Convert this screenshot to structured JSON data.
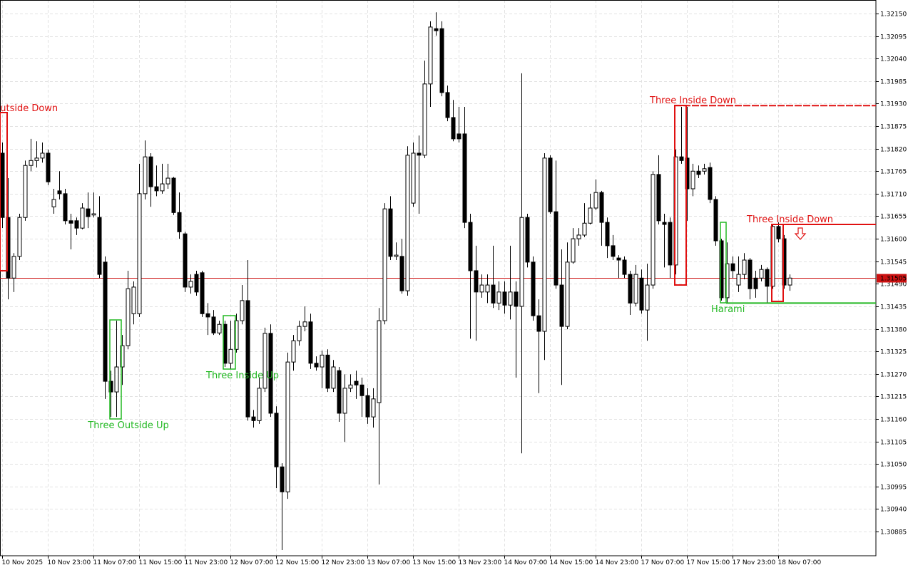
{
  "chart_data": {
    "type": "candlestick",
    "grid": true,
    "bull_color": "#ffffff",
    "bear_color": "#000000",
    "outline_color": "#000000",
    "xlim": [
      -0.375,
      153.125
    ],
    "ylim": [
      1.30826,
      1.32183
    ],
    "xticks": [
      {
        "value": 0,
        "label": "10 Nov 2025"
      },
      {
        "value": 8,
        "label": "10 Nov 23:00"
      },
      {
        "value": 16,
        "label": "11 Nov 07:00"
      },
      {
        "value": 24,
        "label": "11 Nov 15:00"
      },
      {
        "value": 32,
        "label": "11 Nov 23:00"
      },
      {
        "value": 40,
        "label": "12 Nov 07:00"
      },
      {
        "value": 48,
        "label": "12 Nov 15:00"
      },
      {
        "value": 56,
        "label": "12 Nov 23:00"
      },
      {
        "value": 64,
        "label": "13 Nov 07:00"
      },
      {
        "value": 72,
        "label": "13 Nov 15:00"
      },
      {
        "value": 80,
        "label": "13 Nov 23:00"
      },
      {
        "value": 88,
        "label": "14 Nov 07:00"
      },
      {
        "value": 96,
        "label": "14 Nov 15:00"
      },
      {
        "value": 104,
        "label": "14 Nov 23:00"
      },
      {
        "value": 112,
        "label": "17 Nov 07:00"
      },
      {
        "value": 120,
        "label": "17 Nov 15:00"
      },
      {
        "value": 128,
        "label": "17 Nov 23:00"
      },
      {
        "value": 136,
        "label": "18 Nov 07:00"
      }
    ],
    "yticks": [
      {
        "value": 1.3215,
        "label": "1.32150"
      },
      1.32095,
      {
        "value": 1.3204,
        "label": "1.32040"
      },
      1.31985,
      {
        "value": 1.3193,
        "label": "1.31930"
      },
      1.31875,
      {
        "value": 1.3182,
        "label": "1.31820"
      },
      1.31765,
      {
        "value": 1.3171,
        "label": "1.31710"
      },
      1.31655,
      {
        "value": 1.316,
        "label": "1.31600"
      },
      1.31545,
      {
        "value": 1.3149,
        "label": "1.31490"
      },
      1.31435,
      {
        "value": 1.3138,
        "label": "1.31380"
      },
      1.31325,
      {
        "value": 1.3127,
        "label": "1.31270"
      },
      1.31215,
      {
        "value": 1.3116,
        "label": "1.31160"
      },
      1.31105,
      {
        "value": 1.3105,
        "label": "1.31050"
      },
      1.30995,
      {
        "value": 1.3094,
        "label": "1.30940"
      },
      1.30885
    ],
    "current_price": {
      "value": 1.31505,
      "color": "#cc1111"
    },
    "annotations": [
      {
        "text": "Outside Down",
        "color": "#e01010"
      },
      {
        "text": "Three Outside Up",
        "color": "#22b822"
      },
      {
        "text": "Three Inside Up",
        "color": "#22b822"
      },
      {
        "text": "Three Inside Down",
        "color": "#e01010",
        "level": 1.31925
      },
      {
        "text": "Harami",
        "color": "#22b822",
        "level": 1.31443
      },
      {
        "text": "Three Inside Down",
        "color": "#e01010",
        "level": 1.31635
      }
    ],
    "open": [
      1.31809,
      1.31652,
      1.31504,
      1.31557,
      1.31652,
      1.31779,
      1.31791,
      1.31797,
      1.31809,
      1.31678,
      1.31717,
      1.3171,
      1.31644,
      1.31644,
      1.31626,
      1.31673,
      1.31658,
      1.31652,
      1.31543,
      1.31252,
      1.31226,
      1.31287,
      1.31339,
      1.31417,
      1.31417,
      1.3171,
      1.318,
      1.31727,
      1.31717,
      1.31734,
      1.31748,
      1.31664,
      1.31612,
      1.31482,
      1.31513,
      1.31517,
      1.31417,
      1.31409,
      1.3137,
      1.31391,
      1.31296,
      1.3133,
      1.314,
      1.31449,
      1.31165,
      1.31156,
      1.31235,
      1.31369,
      1.31174,
      1.31043,
      1.30982,
      1.31299,
      1.31351,
      1.31386,
      1.31397,
      1.31296,
      1.31287,
      1.31316,
      1.31235,
      1.31278,
      1.31174,
      1.31235,
      1.31252,
      1.31243,
      1.31217,
      1.31165,
      1.312,
      1.314,
      1.31673,
      1.31557,
      1.31557,
      1.31473,
      1.31687,
      1.31809,
      1.31804,
      1.31978,
      1.32113,
      1.32113,
      1.31957,
      1.31896,
      1.31856,
      1.31856,
      1.3164,
      1.31522,
      1.3147,
      1.3147,
      1.31487,
      1.31443,
      1.3147,
      1.31438,
      1.3147,
      1.31435,
      1.31652,
      1.31543,
      1.31412,
      1.31374,
      1.31797,
      1.31666,
      1.31487,
      1.31386,
      1.31543,
      1.316,
      1.31609,
      1.31638,
      1.31675,
      1.31713,
      1.3164,
      1.31583,
      1.31553,
      1.31548,
      1.31513,
      1.31443,
      1.31504,
      1.31426,
      1.31487,
      1.31757,
      1.3164,
      1.3164,
      1.31536,
      1.318,
      1.31797,
      1.31722,
      1.31765,
      1.31765,
      1.31774,
      1.31696,
      1.31595,
      1.31456,
      1.31539,
      1.31487,
      1.31513,
      1.31548,
      1.31504,
      1.31504,
      1.31525,
      1.31484,
      1.3163,
      1.316,
      1.31487
    ],
    "high": [
      1.31835,
      1.31748,
      1.31565,
      1.31661,
      1.31791,
      1.31844,
      1.31838,
      1.31835,
      1.31818,
      1.31722,
      1.31765,
      1.31722,
      1.31661,
      1.31652,
      1.31687,
      1.31713,
      1.31713,
      1.31704,
      1.31557,
      1.31278,
      1.314,
      1.31365,
      1.31522,
      1.31496,
      1.31783,
      1.3184,
      1.31809,
      1.31779,
      1.31783,
      1.31783,
      1.31751,
      1.31713,
      1.31617,
      1.31513,
      1.31522,
      1.31522,
      1.31443,
      1.31426,
      1.314,
      1.314,
      1.314,
      1.31417,
      1.31487,
      1.31548,
      1.31182,
      1.31261,
      1.31383,
      1.31391,
      1.31191,
      1.31052,
      1.31322,
      1.31365,
      1.314,
      1.31435,
      1.31417,
      1.31313,
      1.31327,
      1.3133,
      1.31304,
      1.31287,
      1.31269,
      1.31269,
      1.31278,
      1.31261,
      1.31235,
      1.31235,
      1.31431,
      1.31687,
      1.31704,
      1.31591,
      1.316,
      1.31826,
      1.31835,
      1.31852,
      1.32035,
      1.32131,
      1.32153,
      1.32131,
      1.31974,
      1.31939,
      1.31922,
      1.31922,
      1.31661,
      1.31583,
      1.31513,
      1.31513,
      1.31583,
      1.31496,
      1.31496,
      1.31583,
      1.31496,
      1.32004,
      1.31661,
      1.31557,
      1.31452,
      1.31809,
      1.31804,
      1.31791,
      1.31574,
      1.31591,
      1.31626,
      1.31626,
      1.31687,
      1.3171,
      1.31745,
      1.31717,
      1.31652,
      1.31609,
      1.3156,
      1.31557,
      1.31522,
      1.31536,
      1.31525,
      1.31539,
      1.31765,
      1.31804,
      1.31661,
      1.31652,
      1.31818,
      1.31922,
      1.31922,
      1.31783,
      1.31779,
      1.31783,
      1.31786,
      1.31704,
      1.316,
      1.31591,
      1.31557,
      1.31557,
      1.31565,
      1.31553,
      1.31522,
      1.31536,
      1.3153,
      1.31635,
      1.3164,
      1.31609,
      1.31513
    ],
    "low": [
      1.31626,
      1.31452,
      1.3147,
      1.31548,
      1.31644,
      1.31765,
      1.31774,
      1.31786,
      1.31731,
      1.31661,
      1.31696,
      1.31635,
      1.31574,
      1.31609,
      1.31623,
      1.31626,
      1.31652,
      1.31504,
      1.31209,
      1.31165,
      1.31165,
      1.31243,
      1.3133,
      1.31391,
      1.31409,
      1.31696,
      1.31678,
      1.31704,
      1.3171,
      1.31722,
      1.31658,
      1.316,
      1.3147,
      1.31466,
      1.31461,
      1.31409,
      1.31365,
      1.31365,
      1.31365,
      1.31287,
      1.31282,
      1.31322,
      1.31391,
      1.31156,
      1.31139,
      1.31148,
      1.31226,
      1.31165,
      1.30991,
      1.3084,
      1.30965,
      1.31278,
      1.31339,
      1.31374,
      1.31282,
      1.31278,
      1.31235,
      1.31226,
      1.31226,
      1.31153,
      1.31104,
      1.31226,
      1.31209,
      1.31165,
      1.31148,
      1.31139,
      1.31,
      1.31391,
      1.31548,
      1.31548,
      1.31466,
      1.31461,
      1.31678,
      1.31661,
      1.31797,
      1.31922,
      1.32096,
      1.31948,
      1.31887,
      1.31838,
      1.31835,
      1.31626,
      1.31356,
      1.31351,
      1.31456,
      1.31443,
      1.31431,
      1.31426,
      1.31417,
      1.31403,
      1.31261,
      1.31076,
      1.3153,
      1.314,
      1.31223,
      1.31304,
      1.31661,
      1.31478,
      1.31243,
      1.31379,
      1.31539,
      1.31583,
      1.31604,
      1.31635,
      1.3167,
      1.31583,
      1.31553,
      1.31548,
      1.31504,
      1.31504,
      1.31414,
      1.31435,
      1.31417,
      1.31351,
      1.31478,
      1.31635,
      1.3153,
      1.31504,
      1.31513,
      1.31783,
      1.31644,
      1.31704,
      1.31748,
      1.31757,
      1.31687,
      1.31583,
      1.31449,
      1.31443,
      1.31504,
      1.3147,
      1.31501,
      1.31452,
      1.31456,
      1.31496,
      1.31443,
      1.31478,
      1.31591,
      1.31478,
      1.31473
    ],
    "close": [
      1.31652,
      1.31504,
      1.31557,
      1.31652,
      1.31779,
      1.31791,
      1.31797,
      1.31809,
      1.31739,
      1.31696,
      1.3171,
      1.31644,
      1.31638,
      1.31626,
      1.31675,
      1.31654,
      1.31661,
      1.31513,
      1.31252,
      1.31226,
      1.31287,
      1.31339,
      1.31478,
      1.31482,
      1.3171,
      1.318,
      1.31727,
      1.31717,
      1.31734,
      1.31748,
      1.31664,
      1.31617,
      1.31482,
      1.31496,
      1.3147,
      1.31417,
      1.31409,
      1.3137,
      1.31391,
      1.31296,
      1.3133,
      1.314,
      1.31449,
      1.31165,
      1.31156,
      1.31235,
      1.31369,
      1.31174,
      1.31043,
      1.30982,
      1.31299,
      1.31351,
      1.31386,
      1.31397,
      1.31296,
      1.31287,
      1.31316,
      1.31235,
      1.31287,
      1.31174,
      1.31235,
      1.31243,
      1.31243,
      1.31217,
      1.31165,
      1.31209,
      1.314,
      1.31673,
      1.31557,
      1.3156,
      1.31473,
      1.31804,
      1.31809,
      1.31804,
      1.31978,
      1.32117,
      1.32108,
      1.31957,
      1.31896,
      1.31844,
      1.31844,
      1.3164,
      1.31522,
      1.3147,
      1.31487,
      1.31487,
      1.31443,
      1.3147,
      1.31438,
      1.3147,
      1.31435,
      1.31652,
      1.31543,
      1.31412,
      1.31374,
      1.31797,
      1.31666,
      1.31487,
      1.31386,
      1.31543,
      1.316,
      1.31609,
      1.31638,
      1.31675,
      1.31713,
      1.3164,
      1.31583,
      1.31557,
      1.31548,
      1.31513,
      1.31443,
      1.31513,
      1.31426,
      1.31487,
      1.31757,
      1.31644,
      1.31635,
      1.31536,
      1.318,
      1.31791,
      1.31722,
      1.31765,
      1.31757,
      1.31771,
      1.31696,
      1.31595,
      1.31456,
      1.31539,
      1.31522,
      1.31513,
      1.31548,
      1.31478,
      1.31478,
      1.31525,
      1.31484,
      1.3163,
      1.316,
      1.31487,
      1.31504
    ]
  }
}
